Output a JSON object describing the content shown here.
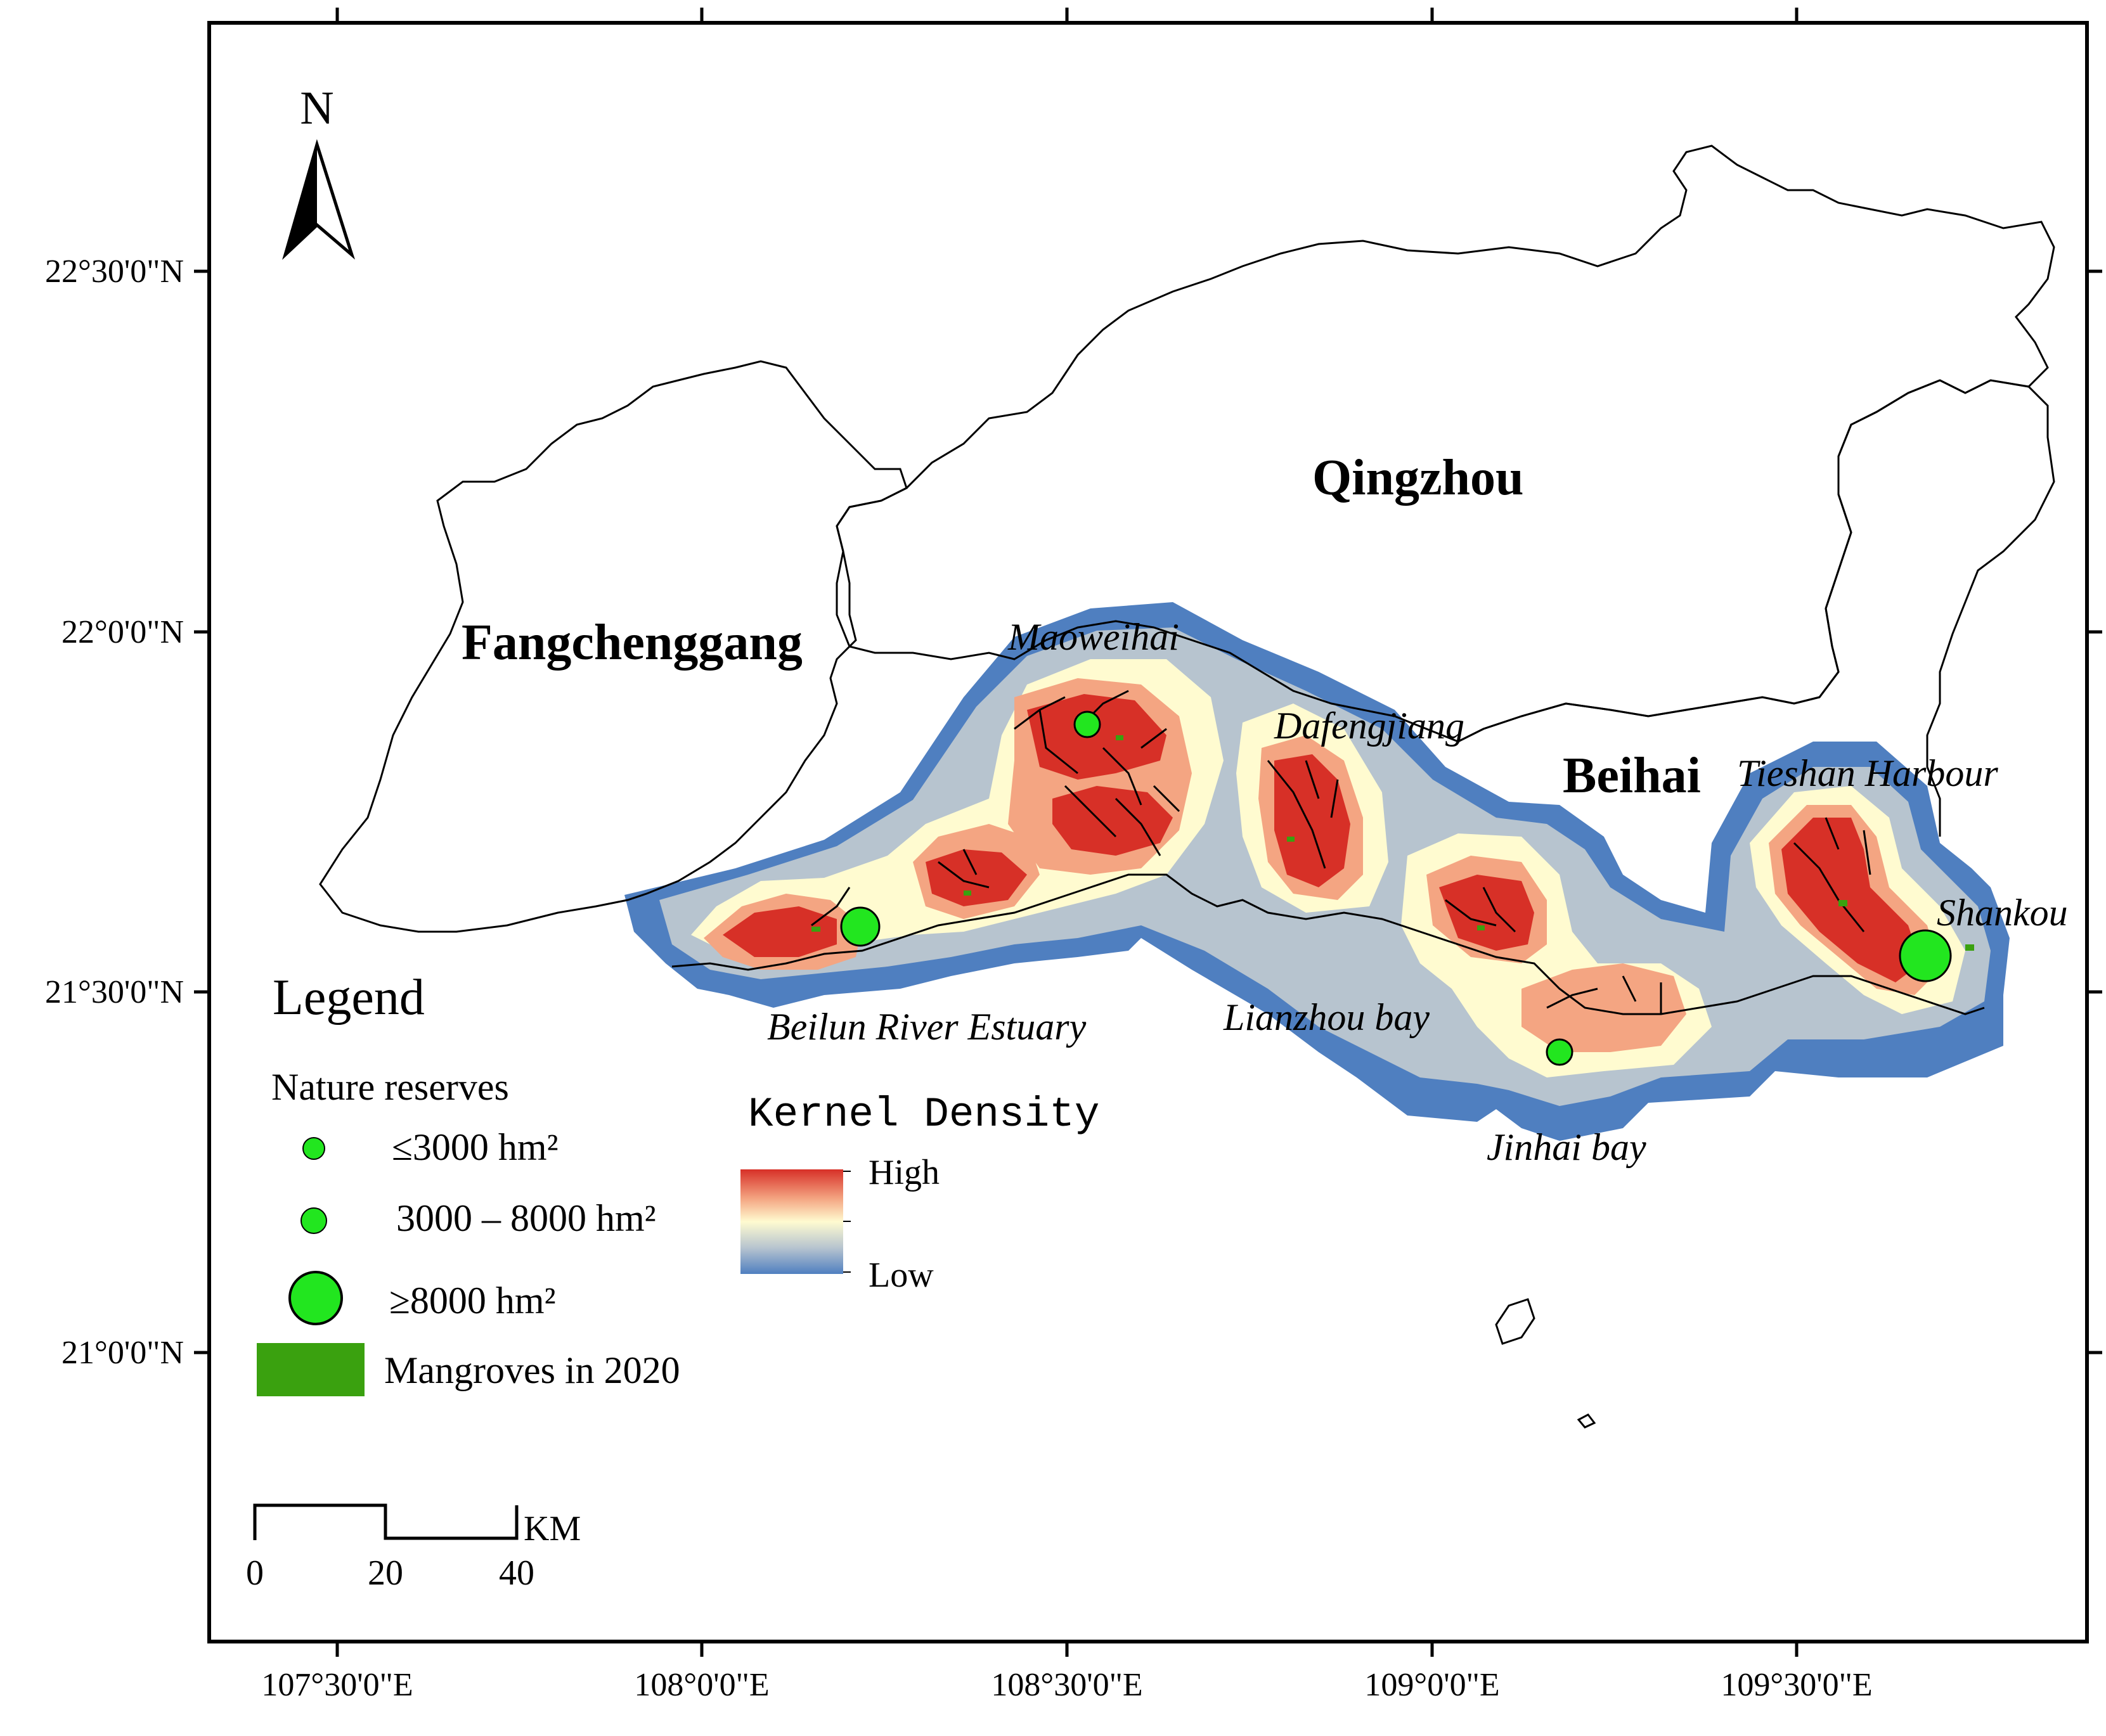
{
  "axes": {
    "lat_ticks": [
      "22°30'0\"N",
      "22°0'0\"N",
      "21°30'0\"N",
      "21°0'0\"N"
    ],
    "lon_ticks": [
      "107°30'0\"E",
      "108°0'0\"E",
      "108°30'0\"E",
      "109°0'0\"E",
      "109°30'0\"E"
    ]
  },
  "north_arrow": {
    "label": "N"
  },
  "cities": {
    "qingzhou": "Qingzhou",
    "fangchenggang": "Fangchenggang",
    "beihai": "Beihai"
  },
  "places": {
    "maoweihai": "Maoweihai",
    "dafengjiang": "Dafengjiang",
    "tieshan": "Tieshan Harbour",
    "shankou": "Shankou",
    "beilun": "Beilun River Estuary",
    "lianzhou": "Lianzhou bay",
    "jinhai": "Jinhai bay"
  },
  "legend": {
    "title": "Legend",
    "reserves_title": "Nature reserves",
    "small": "≤3000 hm²",
    "medium": "3000 – 8000 hm²",
    "large": "≥8000 hm²",
    "mangroves": "Mangroves in 2020"
  },
  "kernel": {
    "title": "Kernel Density",
    "high": "High",
    "low": "Low"
  },
  "scale": {
    "unit": "KM",
    "labels": [
      "0",
      "20",
      "40"
    ]
  },
  "colors": {
    "high": "#d73027",
    "mid_high": "#f4a582",
    "mid": "#fffbd0",
    "mid_low": "#b7c4cf",
    "low": "#4f7fc0",
    "reserve": "#22e61f",
    "mangrove": "#3aa10f"
  }
}
